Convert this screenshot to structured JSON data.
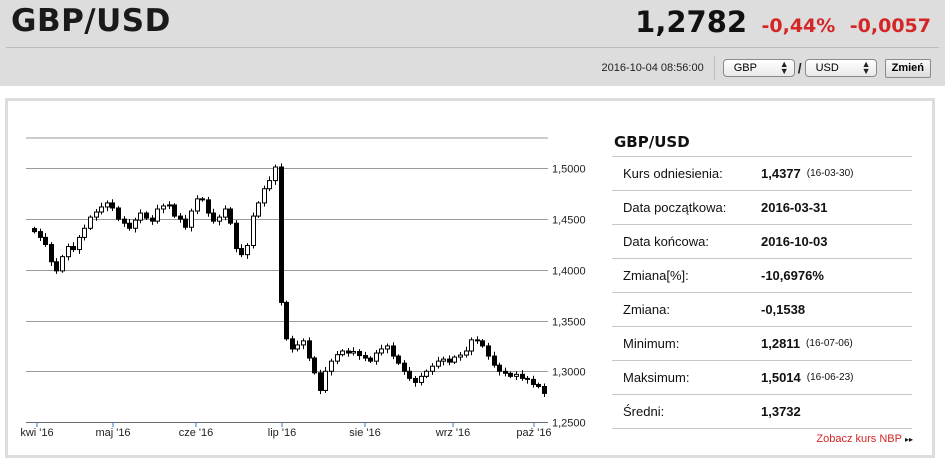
{
  "header": {
    "pair": "GBP/USD",
    "rate": "1,2782",
    "change_pct": "-0,44%",
    "change_abs": "-0,0057",
    "timestamp": "2016-10-04 08:56:00",
    "from_currency": "GBP",
    "slash": "/",
    "to_currency": "USD",
    "change_button": "Zmień"
  },
  "side": {
    "title": "GBP/USD",
    "stats": [
      {
        "label": "Kurs odniesienia:",
        "value": "1,4377",
        "date": "(16-03-30)"
      },
      {
        "label": "Data początkowa:",
        "value": "2016-03-31",
        "date": ""
      },
      {
        "label": "Data końcowa:",
        "value": "2016-10-03",
        "date": ""
      },
      {
        "label": "Zmiana[%]:",
        "value": "-10,6976%",
        "date": ""
      },
      {
        "label": "Zmiana:",
        "value": "-0,1538",
        "date": ""
      },
      {
        "label": "Minimum:",
        "value": "1,2811",
        "date": "(16-07-06)"
      },
      {
        "label": "Maksimum:",
        "value": "1,5014",
        "date": "(16-06-23)"
      },
      {
        "label": "Średni:",
        "value": "1,3732",
        "date": ""
      }
    ],
    "nbp_link": "Zobacz kurs NBP",
    "nbp_arrow": "▸▸"
  },
  "colors": {
    "accent_red": "#d42626",
    "header_bg": "#dddddd"
  },
  "chart_data": {
    "type": "candlestick",
    "x_labels": [
      "kwi '16",
      "maj '16",
      "cze '16",
      "lip '16",
      "sie '16",
      "wrz '16",
      "paź '16"
    ],
    "y_ticks": [
      "1,5000",
      "1,4500",
      "1,4000",
      "1,3500",
      "1,3000",
      "1,2500"
    ],
    "ylim": [
      1.25,
      1.53
    ],
    "grid": true,
    "closes": [
      1.4377,
      1.432,
      1.425,
      1.408,
      1.399,
      1.413,
      1.423,
      1.42,
      1.432,
      1.441,
      1.452,
      1.457,
      1.462,
      1.466,
      1.461,
      1.45,
      1.446,
      1.441,
      1.449,
      1.456,
      1.451,
      1.448,
      1.46,
      1.463,
      1.464,
      1.453,
      1.45,
      1.442,
      1.458,
      1.47,
      1.469,
      1.456,
      1.448,
      1.452,
      1.46,
      1.446,
      1.421,
      1.415,
      1.424,
      1.453,
      1.466,
      1.48,
      1.488,
      1.5014,
      1.3679,
      1.332,
      1.322,
      1.326,
      1.33,
      1.3131,
      1.2985,
      1.2811,
      1.3,
      1.31,
      1.3164,
      1.32,
      1.318,
      1.3195,
      1.3155,
      1.313,
      1.31,
      1.318,
      1.322,
      1.325,
      1.315,
      1.308,
      1.3,
      1.293,
      1.289,
      1.295,
      1.3,
      1.305,
      1.31,
      1.312,
      1.309,
      1.314,
      1.316,
      1.32,
      1.331,
      1.33,
      1.325,
      1.315,
      1.306,
      1.3,
      1.298,
      1.295,
      1.297,
      1.293,
      1.292,
      1.287,
      1.285,
      1.2782
    ]
  }
}
